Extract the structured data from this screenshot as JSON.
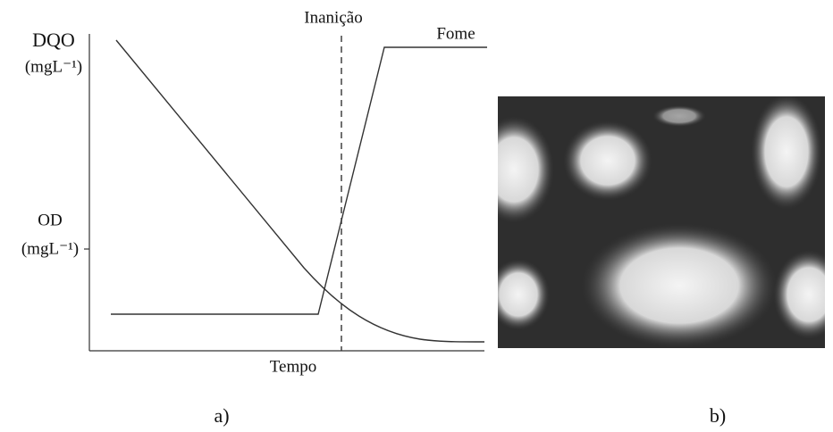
{
  "panel_a": {
    "y_label_top": "DQO",
    "y_unit_top": "(mgL⁻¹)",
    "y_label_bottom": "OD",
    "y_unit_bottom": "(mgL⁻¹)",
    "annotation_starvation": "Inanição",
    "annotation_hunger": "Fome",
    "x_label": "Tempo",
    "label": "a)"
  },
  "panel_b": {
    "label": "b)"
  }
}
